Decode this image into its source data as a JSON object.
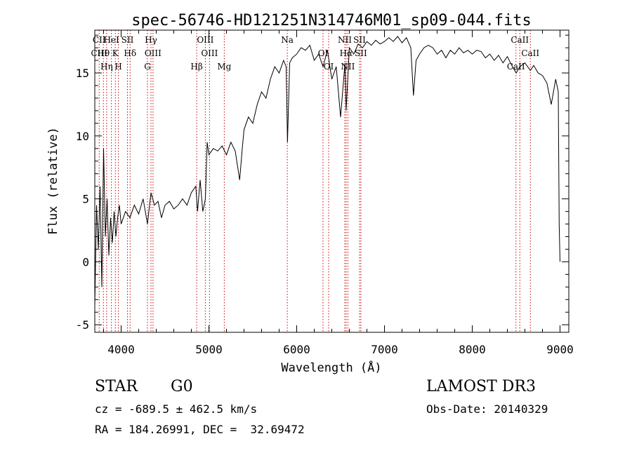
{
  "chart_data": {
    "type": "line",
    "title": "spec-56746-HD121251N314746M01_sp09-044.fits",
    "xlabel": "Wavelength (Å)",
    "ylabel": "Flux (relative)",
    "xlim": [
      3700,
      9100
    ],
    "ylim": [
      -5.6,
      18.4
    ],
    "xticks": [
      4000,
      5000,
      6000,
      7000,
      8000,
      9000
    ],
    "yticks": [
      -5,
      0,
      5,
      10,
      15
    ],
    "grid": false,
    "series": [
      {
        "color": "#000000",
        "x": [
          3700,
          3720,
          3740,
          3760,
          3780,
          3800,
          3820,
          3840,
          3860,
          3880,
          3900,
          3920,
          3940,
          3960,
          3980,
          4000,
          4050,
          4100,
          4150,
          4200,
          4250,
          4300,
          4340,
          4380,
          4420,
          4460,
          4500,
          4550,
          4600,
          4650,
          4700,
          4750,
          4800,
          4850,
          4870,
          4900,
          4930,
          4960,
          4980,
          5000,
          5050,
          5100,
          5150,
          5200,
          5250,
          5300,
          5350,
          5380,
          5400,
          5450,
          5500,
          5550,
          5600,
          5650,
          5700,
          5750,
          5800,
          5850,
          5880,
          5895,
          5920,
          5950,
          6000,
          6050,
          6100,
          6150,
          6200,
          6250,
          6300,
          6350,
          6400,
          6450,
          6500,
          6550,
          6563,
          6600,
          6650,
          6700,
          6750,
          6800,
          6850,
          6900,
          6950,
          7000,
          7050,
          7100,
          7150,
          7200,
          7250,
          7300,
          7330,
          7360,
          7400,
          7450,
          7500,
          7550,
          7600,
          7650,
          7700,
          7750,
          7800,
          7850,
          7900,
          7950,
          8000,
          8050,
          8100,
          8150,
          8200,
          8250,
          8300,
          8350,
          8400,
          8450,
          8500,
          8542,
          8600,
          8662,
          8700,
          8750,
          8800,
          8850,
          8900,
          8950,
          8980,
          8990,
          9000
        ],
        "values": [
          -3.5,
          4.5,
          1.0,
          6.0,
          -2.0,
          9.0,
          2.0,
          5.0,
          0.5,
          3.5,
          1.5,
          4.0,
          2.0,
          3.5,
          4.5,
          3.0,
          4.0,
          3.5,
          4.5,
          3.8,
          5.0,
          3.0,
          5.5,
          4.5,
          4.8,
          3.5,
          4.5,
          4.8,
          4.2,
          4.5,
          5.0,
          4.5,
          5.5,
          6.0,
          4.0,
          6.5,
          4.0,
          5.0,
          9.5,
          8.5,
          9.0,
          8.8,
          9.2,
          8.5,
          9.5,
          8.8,
          6.5,
          9.0,
          10.5,
          11.5,
          11.0,
          12.5,
          13.5,
          13.0,
          14.5,
          15.5,
          15.0,
          16.0,
          15.5,
          9.5,
          15.8,
          16.2,
          16.5,
          17.0,
          16.8,
          17.2,
          16.0,
          16.5,
          15.5,
          16.8,
          14.5,
          15.5,
          11.5,
          15.8,
          12.0,
          17.0,
          16.5,
          17.3,
          17.0,
          17.5,
          17.2,
          17.6,
          17.3,
          17.5,
          17.8,
          17.5,
          17.9,
          17.4,
          17.8,
          17.0,
          13.2,
          16.0,
          16.5,
          17.0,
          17.2,
          17.0,
          16.5,
          16.8,
          16.2,
          16.8,
          16.5,
          17.0,
          16.6,
          16.8,
          16.5,
          16.8,
          16.7,
          16.2,
          16.5,
          16.0,
          16.4,
          15.8,
          16.3,
          15.6,
          15.0,
          15.5,
          15.8,
          15.2,
          15.6,
          15.0,
          14.8,
          14.2,
          12.5,
          14.5,
          13.5,
          3.0,
          0.0
        ]
      }
    ],
    "lines": [
      {
        "x": 3750,
        "labels": [
          "CII",
          "CIII"
        ]
      },
      {
        "x": 3798,
        "labels": [
          "Hθ"
        ]
      },
      {
        "x": 3835,
        "labels": [
          "Hη"
        ]
      },
      {
        "x": 3889,
        "labels": [
          "HeI"
        ]
      },
      {
        "x": 3934,
        "labels": [
          "K"
        ]
      },
      {
        "x": 3969,
        "labels": [
          "H"
        ]
      },
      {
        "x": 4072,
        "labels": [
          "SII"
        ]
      },
      {
        "x": 4102,
        "labels": [
          "Hδ"
        ]
      },
      {
        "x": 4300,
        "labels": [
          "G"
        ]
      },
      {
        "x": 4340,
        "labels": [
          "Hγ"
        ]
      },
      {
        "x": 4363,
        "labels": [
          "OIII"
        ]
      },
      {
        "x": 4861,
        "labels": [
          "Hβ"
        ]
      },
      {
        "x": 4959,
        "labels": [
          "OIII"
        ]
      },
      {
        "x": 5007,
        "labels": [
          "OIII"
        ]
      },
      {
        "x": 5175,
        "labels": [
          "Mg"
        ]
      },
      {
        "x": 5893,
        "labels": [
          "Na"
        ]
      },
      {
        "x": 6300,
        "labels": [
          "OI"
        ]
      },
      {
        "x": 6364,
        "labels": [
          "OI"
        ]
      },
      {
        "x": 6548,
        "labels": [
          "NII"
        ]
      },
      {
        "x": 6563,
        "labels": [
          "Hα"
        ]
      },
      {
        "x": 6583,
        "labels": [
          "NII"
        ]
      },
      {
        "x": 6716,
        "labels": [
          "SII"
        ]
      },
      {
        "x": 6731,
        "labels": [
          "SII"
        ]
      },
      {
        "x": 8498,
        "labels": [
          "CaII"
        ]
      },
      {
        "x": 8542,
        "labels": [
          "CaII"
        ]
      },
      {
        "x": 8662,
        "labels": [
          "CaII"
        ]
      }
    ],
    "line_color": "#cc0000"
  },
  "info": {
    "object_class": "STAR",
    "subclass": "G0",
    "survey": "LAMOST DR3",
    "cz": "cz = -689.5 ± 462.5 km/s",
    "obs_date": "Obs-Date: 20140329",
    "coords": "RA = 184.26991, DEC =  32.69472"
  }
}
